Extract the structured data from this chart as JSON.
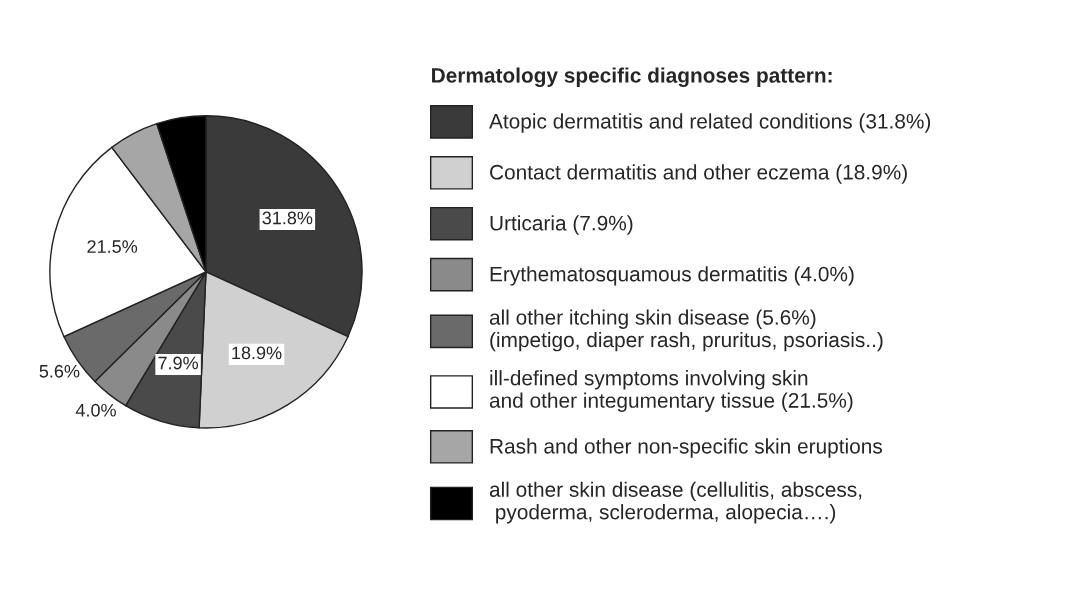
{
  "chart_data": {
    "type": "pie",
    "legend_title": "Dermatology specific diagnoses pattern:",
    "categories": [
      "Atopic dermatitis and related conditions (31.8%)",
      "Contact dermatitis and other eczema (18.9%)",
      "Urticaria (7.9%)",
      "Erythematosquamous dermatitis (4.0%)",
      "all other itching skin disease (5.6%)\n(impetigo, diaper rash, pruritus, psoriasis..)",
      "ill-defined symptoms involving skin\nand other integumentary tissue (21.5%)",
      "Rash and other non-specific skin eruptions",
      "all other skin disease (cellulitis, abscess,\n pyoderma, scleroderma, alopecia….)"
    ],
    "values": [
      31.8,
      18.9,
      7.9,
      4.0,
      5.6,
      21.5,
      5.2,
      5.1
    ],
    "value_labels": [
      "31.8%",
      "18.9%",
      "7.9%",
      "4.0%",
      "5.6%",
      "21.5%",
      null,
      null
    ],
    "colors": [
      "#3a3a3a",
      "#d0d0d0",
      "#4a4a4a",
      "#8a8a8a",
      "#6a6a6a",
      "#ffffff",
      "#a6a6a6",
      "#000000"
    ],
    "legend": "right"
  }
}
